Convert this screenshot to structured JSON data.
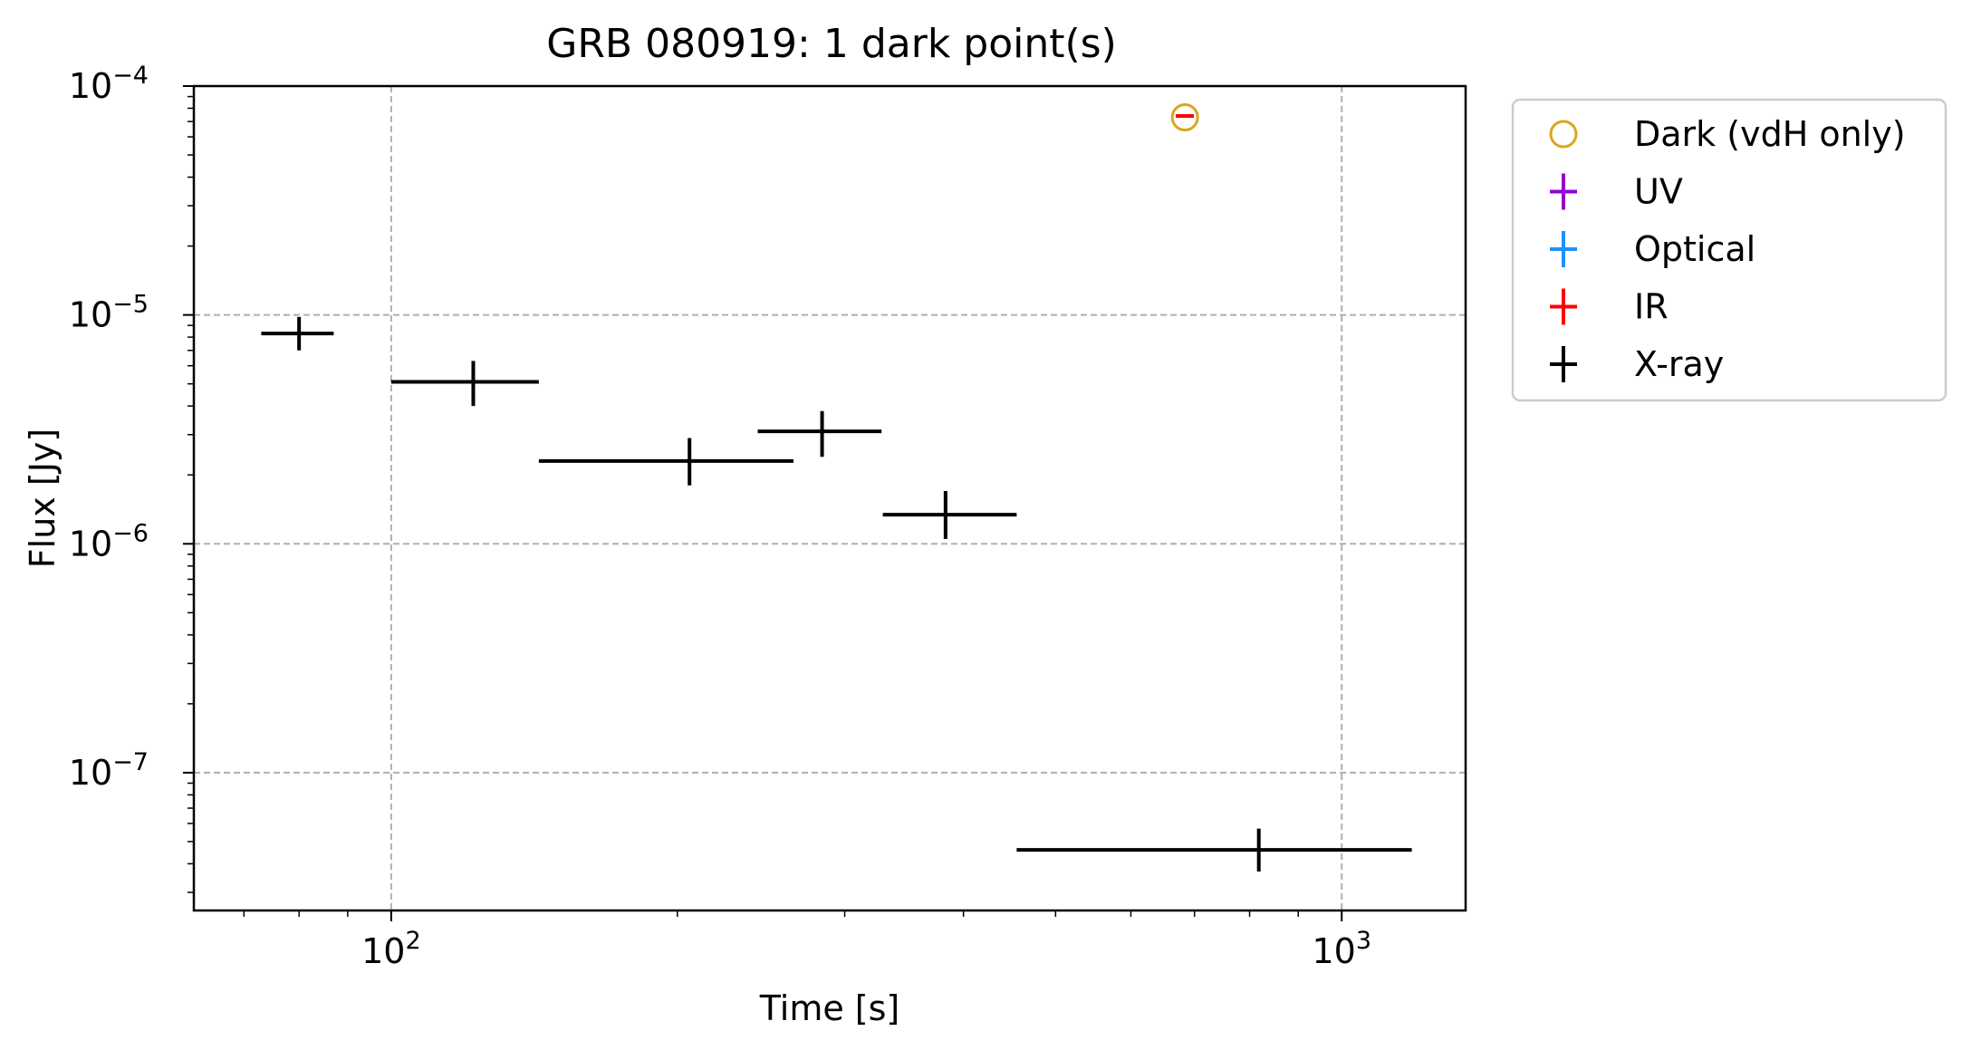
{
  "chart_data": {
    "type": "scatter",
    "title": "GRB 080919: 1 dark point(s)",
    "xlabel": "Time [s]",
    "ylabel": "Flux [Jy]",
    "xscale": "log",
    "yscale": "log",
    "xlim": [
      62,
      1350
    ],
    "ylim": [
      2.5e-08,
      0.0001
    ],
    "grid": true,
    "legend_position": "outside-right",
    "x_ticks": [
      {
        "value": 100,
        "base": "10",
        "exp": "2"
      },
      {
        "value": 1000,
        "base": "10",
        "exp": "3"
      }
    ],
    "y_ticks": [
      {
        "value": 0.0001,
        "base": "10",
        "exp": "−4"
      },
      {
        "value": 1e-05,
        "base": "10",
        "exp": "−5"
      },
      {
        "value": 1e-06,
        "base": "10",
        "exp": "−6"
      },
      {
        "value": 1e-07,
        "base": "10",
        "exp": "−7"
      }
    ],
    "legend": [
      {
        "label": "Dark (vdH only)",
        "marker": "open-circle",
        "color": "#DAA520"
      },
      {
        "label": "UV",
        "marker": "errorbar",
        "color": "#9400D3"
      },
      {
        "label": "Optical",
        "marker": "errorbar",
        "color": "#1E90FF"
      },
      {
        "label": "IR",
        "marker": "errorbar",
        "color": "#FF0000"
      },
      {
        "label": "X-ray",
        "marker": "errorbar",
        "color": "#000000"
      }
    ],
    "series": [
      {
        "name": "X-ray",
        "color": "#000000",
        "points": [
          {
            "x": 80,
            "y": 8.3e-06,
            "xerr": [
              73,
              87
            ],
            "yerr": [
              7e-06,
              9.8e-06
            ]
          },
          {
            "x": 122,
            "y": 5.1e-06,
            "xerr": [
              100,
              143
            ],
            "yerr": [
              4e-06,
              6.3e-06
            ]
          },
          {
            "x": 206,
            "y": 2.3e-06,
            "xerr": [
              143,
              265
            ],
            "yerr": [
              1.8e-06,
              2.9e-06
            ]
          },
          {
            "x": 284,
            "y": 3.1e-06,
            "xerr": [
              243,
              328
            ],
            "yerr": [
              2.4e-06,
              3.8e-06
            ]
          },
          {
            "x": 383,
            "y": 1.34e-06,
            "xerr": [
              329,
              455
            ],
            "yerr": [
              1.05e-06,
              1.7e-06
            ]
          },
          {
            "x": 818,
            "y": 4.6e-08,
            "xerr": [
              455,
              1185
            ],
            "yerr": [
              3.7e-08,
              5.7e-08
            ]
          }
        ]
      },
      {
        "name": "IR",
        "color": "#FF0000",
        "points": [
          {
            "x": 684,
            "y": 7.4e-05,
            "xerr": [
              669,
              699
            ]
          }
        ]
      },
      {
        "name": "Dark (vdH only)",
        "color": "#DAA520",
        "points": [
          {
            "x": 684,
            "y": 7.3e-05
          }
        ]
      }
    ]
  }
}
